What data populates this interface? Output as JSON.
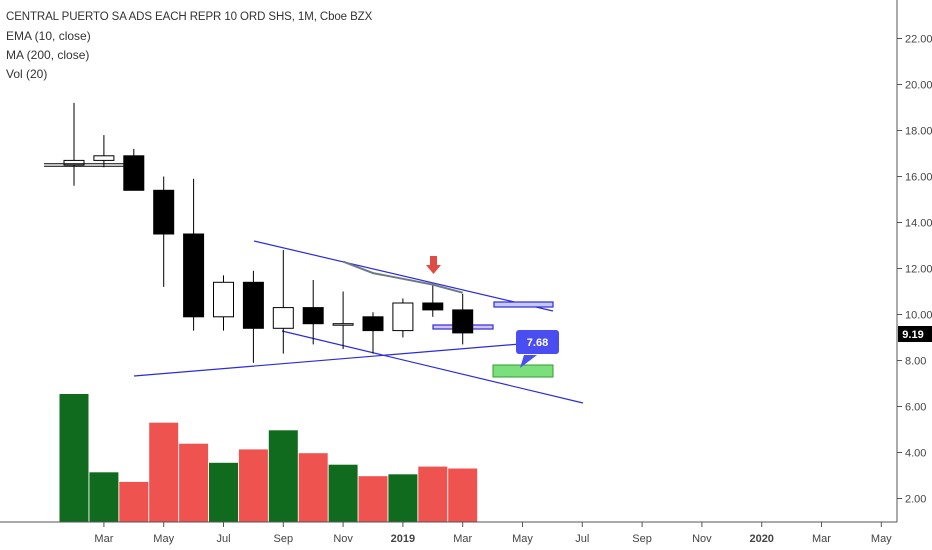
{
  "legend": {
    "title": "CENTRAL PUERTO SA ADS EACH REPR 10 ORD SHS, 1M, Cboe BZX",
    "ema": "EMA (10, close)",
    "ma": "MA (200, close)",
    "vol": "Vol (20)"
  },
  "chart_data": {
    "type": "candlestick",
    "interval": "1M",
    "y_axis": {
      "position": "right",
      "range": [
        1,
        23.5
      ],
      "ticks": [
        "2.00",
        "4.00",
        "6.00",
        "8.00",
        "10.00",
        "12.00",
        "14.00",
        "16.00",
        "18.00",
        "20.00",
        "22.00"
      ],
      "tick_values": [
        2,
        4,
        6,
        8,
        10,
        12,
        14,
        16,
        18,
        20,
        22
      ]
    },
    "x_axis": {
      "labels": [
        {
          "label": "Mar",
          "index": 1,
          "bold": false
        },
        {
          "label": "May",
          "index": 3,
          "bold": false
        },
        {
          "label": "Jul",
          "index": 5,
          "bold": false
        },
        {
          "label": "Sep",
          "index": 7,
          "bold": false
        },
        {
          "label": "Nov",
          "index": 9,
          "bold": false
        },
        {
          "label": "2019",
          "index": 11,
          "bold": true
        },
        {
          "label": "Mar",
          "index": 13,
          "bold": false
        },
        {
          "label": "May",
          "index": 15,
          "bold": false
        },
        {
          "label": "Jul",
          "index": 17,
          "bold": false
        },
        {
          "label": "Sep",
          "index": 19,
          "bold": false
        },
        {
          "label": "Nov",
          "index": 21,
          "bold": false
        },
        {
          "label": "2020",
          "index": 23,
          "bold": true
        },
        {
          "label": "Mar",
          "index": 25,
          "bold": false
        },
        {
          "label": "May",
          "index": 27,
          "bold": false
        }
      ]
    },
    "candles": [
      {
        "index": 0,
        "open": 16.5,
        "high": 19.2,
        "low": 15.6,
        "close": 16.7,
        "volume": 6.7
      },
      {
        "index": 1,
        "open": 16.7,
        "high": 17.8,
        "low": 16.4,
        "close": 16.9,
        "volume": 2.6
      },
      {
        "index": 2,
        "open": 16.9,
        "high": 17.2,
        "low": 15.5,
        "close": 15.4,
        "volume": 2.1
      },
      {
        "index": 3,
        "open": 15.4,
        "high": 16.0,
        "low": 11.2,
        "close": 13.5,
        "volume": 5.2
      },
      {
        "index": 4,
        "open": 13.5,
        "high": 15.9,
        "low": 9.3,
        "close": 9.9,
        "volume": 4.1
      },
      {
        "index": 5,
        "open": 9.9,
        "high": 11.7,
        "low": 9.3,
        "close": 11.4,
        "volume": 3.1
      },
      {
        "index": 6,
        "open": 11.4,
        "high": 11.9,
        "low": 7.9,
        "close": 9.4,
        "volume": 3.8
      },
      {
        "index": 7,
        "open": 9.4,
        "high": 12.8,
        "low": 8.3,
        "close": 10.3,
        "volume": 4.8
      },
      {
        "index": 8,
        "open": 10.3,
        "high": 11.5,
        "low": 8.7,
        "close": 9.6,
        "volume": 3.6
      },
      {
        "index": 9,
        "open": 9.6,
        "high": 11.0,
        "low": 8.5,
        "close": 9.6,
        "volume": 3.0
      },
      {
        "index": 10,
        "open": 9.9,
        "high": 10.1,
        "low": 8.3,
        "close": 9.3,
        "volume": 2.4
      },
      {
        "index": 11,
        "open": 9.3,
        "high": 10.7,
        "low": 9.0,
        "close": 10.5,
        "volume": 2.5
      },
      {
        "index": 12,
        "open": 10.5,
        "high": 11.3,
        "low": 9.9,
        "close": 10.2,
        "volume": 2.9
      },
      {
        "index": 13,
        "open": 10.2,
        "high": 10.9,
        "low": 8.7,
        "close": 9.2,
        "volume": 2.8
      }
    ],
    "ema_line": [
      {
        "index": 9,
        "value": 12.3
      },
      {
        "index": 10,
        "value": 11.8
      },
      {
        "index": 11,
        "value": 11.55
      },
      {
        "index": 12,
        "value": 11.3
      },
      {
        "index": 13,
        "value": 10.95
      }
    ],
    "last_price": "9.19",
    "annotation_label": "7.68",
    "colors": {
      "bull_volume": "#106b1e",
      "bear_volume": "#ef5350",
      "candle_body": "#000000",
      "trendline": "#2b2bdb",
      "ema": "#6e7a85",
      "arrow": "#e04b43",
      "callout": "#4a4ef0",
      "green_box": "#7be07b",
      "price_tag": "#000000"
    }
  }
}
